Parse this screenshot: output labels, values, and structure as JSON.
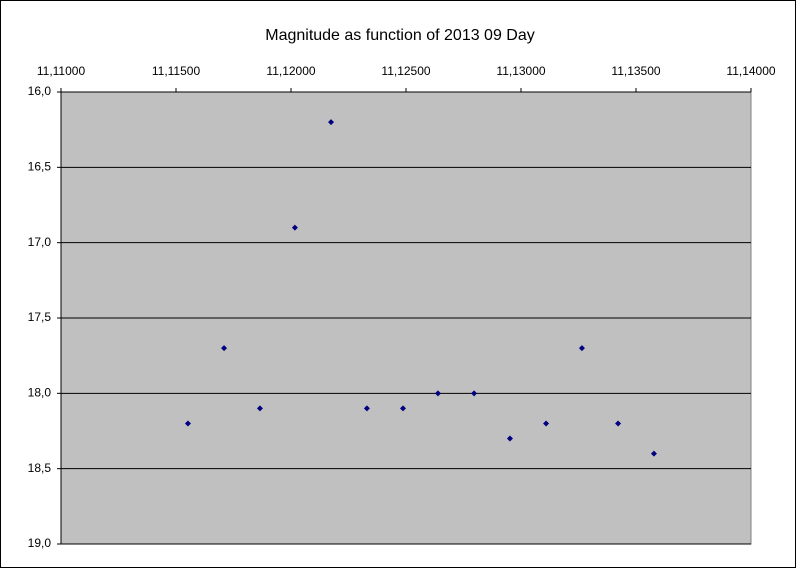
{
  "chart_data": {
    "type": "scatter",
    "title": "Magnitude as function of 2013 09 Day",
    "x": [
      11.11552,
      11.11709,
      11.11865,
      11.12017,
      11.12174,
      11.1233,
      11.12487,
      11.12639,
      11.12796,
      11.12952,
      11.13109,
      11.13265,
      11.13422,
      11.13578
    ],
    "values": [
      18.2,
      17.7,
      18.1,
      16.9,
      16.2,
      18.1,
      18.1,
      18.0,
      18.0,
      18.3,
      18.2,
      17.7,
      18.2,
      18.4
    ],
    "color": "#000080",
    "xlim": [
      11.11,
      11.14
    ],
    "xticks": [
      {
        "value": 11.11,
        "label": "11,11000"
      },
      {
        "value": 11.115,
        "label": "11,11500"
      },
      {
        "value": 11.12,
        "label": "11,12000"
      },
      {
        "value": 11.125,
        "label": "11,12500"
      },
      {
        "value": 11.13,
        "label": "11,13000"
      },
      {
        "value": 11.135,
        "label": "11,13500"
      },
      {
        "value": 11.14,
        "label": "11,14000"
      }
    ],
    "ylim": [
      16,
      19
    ],
    "yticks": [
      {
        "value": 16,
        "label": "16,0"
      },
      {
        "value": 16.5,
        "label": "16,5"
      },
      {
        "value": 17,
        "label": "17,0"
      },
      {
        "value": 17.5,
        "label": "17,5"
      },
      {
        "value": 18,
        "label": "18,0"
      },
      {
        "value": 18.5,
        "label": "18,5"
      },
      {
        "value": 19,
        "label": "19,0"
      }
    ],
    "y_inverted": true,
    "x_axis_position": "top",
    "grid": true,
    "plot_background": "#c0c0c0"
  }
}
